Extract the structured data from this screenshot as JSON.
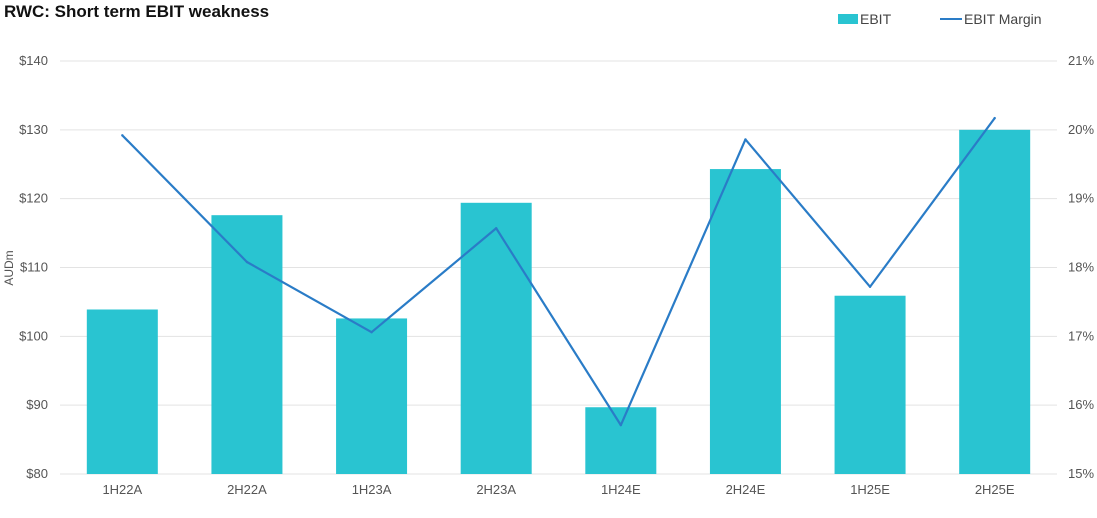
{
  "chart_data": {
    "type": "bar",
    "title": "RWC: Short term EBIT weakness",
    "categories": [
      "1H22A",
      "2H22A",
      "1H23A",
      "2H23A",
      "1H24E",
      "2H24E",
      "1H25E",
      "2H25E"
    ],
    "series": [
      {
        "name": "EBIT",
        "type": "bar",
        "axis": "left",
        "color": "#29c4d1",
        "values": [
          103.9,
          117.6,
          102.6,
          119.4,
          89.7,
          124.3,
          105.9,
          130.0
        ]
      },
      {
        "name": "EBIT Margin",
        "type": "line",
        "axis": "right",
        "color": "#2a7cc7",
        "values": [
          19.92,
          18.08,
          17.06,
          18.57,
          15.71,
          19.86,
          17.72,
          20.17
        ]
      }
    ],
    "ylabel": "AUDm",
    "y_left": {
      "min": 80,
      "max": 140,
      "ticks": [
        80,
        90,
        100,
        110,
        120,
        130,
        140
      ],
      "tick_labels": [
        "$80",
        "$90",
        "$100",
        "$110",
        "$120",
        "$130",
        "$140"
      ]
    },
    "y_right": {
      "min": 15,
      "max": 21,
      "ticks": [
        15,
        16,
        17,
        18,
        19,
        20,
        21
      ],
      "tick_labels": [
        "15%",
        "16%",
        "17%",
        "18%",
        "19%",
        "20%",
        "21%"
      ]
    },
    "grid": true,
    "legend_position": "top-right"
  }
}
